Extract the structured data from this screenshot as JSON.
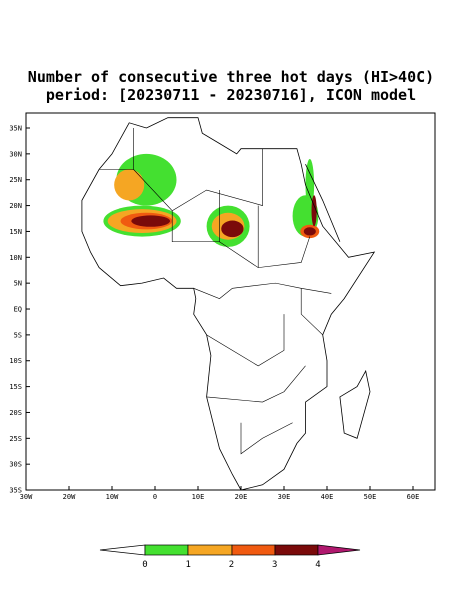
{
  "title": [
    "Number of consecutive three hot days (HI>40C)",
    "period: [20230711 - 20230716], ICON model"
  ],
  "map": {
    "lat_labels": [
      "35N",
      "30N",
      "25N",
      "20N",
      "15N",
      "10N",
      "5N",
      "EQ",
      "5S",
      "10S",
      "15S",
      "20S",
      "25S",
      "30S",
      "35S"
    ],
    "lon_labels": [
      "30W",
      "20W",
      "10W",
      "0",
      "10E",
      "20E",
      "30E",
      "40E",
      "50E",
      "60E"
    ]
  },
  "colorbar": {
    "labels": [
      "0",
      "1",
      "2",
      "3",
      "4"
    ]
  }
}
